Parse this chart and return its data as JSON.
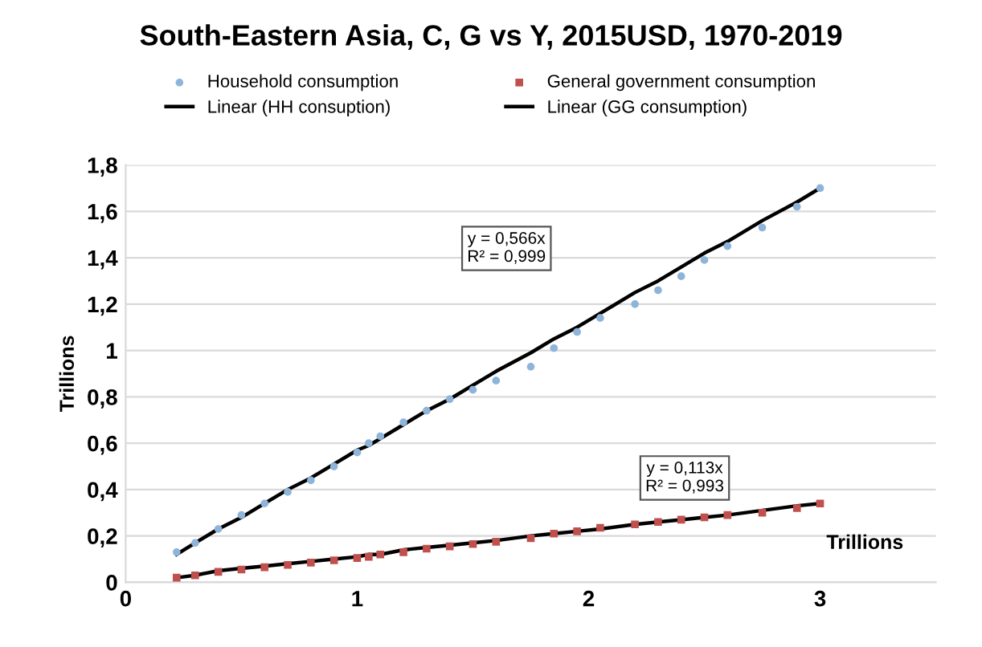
{
  "chart_data": {
    "type": "scatter",
    "title": "South-Eastern Asia, C, G vs Y, 2015USD, 1970-2019",
    "xlabel": "Trillions",
    "ylabel": "Trillions",
    "x": [
      0.22,
      0.3,
      0.4,
      0.5,
      0.6,
      0.7,
      0.8,
      0.9,
      1.0,
      1.05,
      1.1,
      1.2,
      1.3,
      1.4,
      1.5,
      1.6,
      1.75,
      1.85,
      1.95,
      2.05,
      2.2,
      2.3,
      2.4,
      2.5,
      2.6,
      2.75,
      2.9,
      3.0
    ],
    "series": [
      {
        "name": "Household consumption",
        "marker": "circle",
        "color": "#8fb4d9",
        "values": [
          0.13,
          0.17,
          0.23,
          0.29,
          0.34,
          0.39,
          0.44,
          0.5,
          0.56,
          0.6,
          0.63,
          0.69,
          0.74,
          0.79,
          0.83,
          0.87,
          0.93,
          1.01,
          1.08,
          1.14,
          1.2,
          1.26,
          1.32,
          1.39,
          1.45,
          1.53,
          1.62,
          1.7
        ]
      },
      {
        "name": "General government consumption",
        "marker": "square",
        "color": "#c0504d",
        "values": [
          0.02,
          0.03,
          0.045,
          0.055,
          0.065,
          0.075,
          0.085,
          0.095,
          0.105,
          0.11,
          0.12,
          0.13,
          0.145,
          0.155,
          0.165,
          0.175,
          0.19,
          0.21,
          0.22,
          0.235,
          0.25,
          0.26,
          0.27,
          0.28,
          0.29,
          0.3,
          0.32,
          0.34
        ]
      },
      {
        "name": "Linear (HH consuption)",
        "type": "line",
        "marker": "none",
        "color": "#000000",
        "values": [
          0.12,
          0.17,
          0.23,
          0.28,
          0.34,
          0.4,
          0.45,
          0.51,
          0.57,
          0.59,
          0.62,
          0.68,
          0.74,
          0.79,
          0.85,
          0.91,
          0.99,
          1.05,
          1.1,
          1.16,
          1.25,
          1.3,
          1.36,
          1.42,
          1.47,
          1.56,
          1.64,
          1.7
        ]
      },
      {
        "name": "Linear (GG consumption)",
        "type": "line",
        "marker": "none",
        "color": "#000000",
        "values": [
          0.02,
          0.03,
          0.05,
          0.06,
          0.07,
          0.08,
          0.09,
          0.1,
          0.11,
          0.12,
          0.12,
          0.14,
          0.15,
          0.16,
          0.17,
          0.18,
          0.2,
          0.21,
          0.22,
          0.23,
          0.25,
          0.26,
          0.27,
          0.28,
          0.29,
          0.31,
          0.33,
          0.34
        ]
      }
    ],
    "annotations": [
      "y = 0,566x\nR² = 0,999",
      "y = 0,113x\nR² = 0,993"
    ],
    "xlim": [
      0,
      3.5
    ],
    "xticks": [
      0,
      1,
      2,
      3
    ],
    "ylim": [
      0,
      1.8
    ],
    "yticks": [
      0,
      {
        "value": 0.2,
        "label": "0,2"
      },
      {
        "value": 0.4,
        "label": "0,4"
      },
      {
        "value": 0.6,
        "label": "0,6"
      },
      {
        "value": 0.8,
        "label": "0,8"
      },
      1,
      {
        "value": 1.2,
        "label": "1,2"
      },
      {
        "value": 1.4,
        "label": "1,4"
      },
      {
        "value": 1.6,
        "label": "1,6"
      },
      {
        "value": 1.8,
        "label": "1,8"
      }
    ],
    "grid": "y",
    "legend": "top",
    "line_style": "solid"
  }
}
